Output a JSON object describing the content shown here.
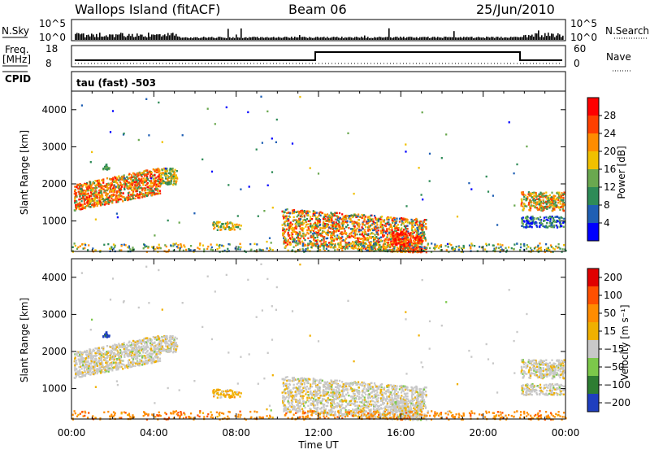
{
  "header": {
    "station": "Wallops Island (fitACF)",
    "beam": "Beam 06",
    "date": "25/Jun/2010"
  },
  "top_panels": {
    "nsky_label": "N.Sky",
    "nsky_ticks": [
      "10^5",
      "10^0"
    ],
    "nsearch_label": "N.Search",
    "nsearch_ticks": [
      "10^5",
      "10^0"
    ],
    "freq_label": "Freq.",
    "freq_unit": "[MHz]",
    "freq_ticks": [
      "18",
      "8"
    ],
    "nave_label": "Nave",
    "nave_ticks": [
      "60",
      "0"
    ],
    "cpid_label": "CPID",
    "cpid_value": "tau (fast) -503"
  },
  "chart_data": [
    {
      "type": "heatmap",
      "name": "power",
      "ylabel": "Slant Range [km]",
      "xlabel": "Time UT",
      "xlim": [
        0,
        24
      ],
      "ylim": [
        180,
        4500
      ],
      "x_ticks": [
        "00:00",
        "04:00",
        "08:00",
        "12:00",
        "16:00",
        "20:00",
        "00:00"
      ],
      "y_ticks": [
        "1000",
        "2000",
        "3000",
        "4000"
      ],
      "colorbar": {
        "label": "Power [dB]",
        "ticks": [
          "4",
          "8",
          "12",
          "16",
          "20",
          "24",
          "28"
        ],
        "colors": [
          "#0000ff",
          "#1f5fb4",
          "#2e8b57",
          "#6aa84f",
          "#f0c000",
          "#ff8c00",
          "#ff4000",
          "#ff0000"
        ]
      }
    },
    {
      "type": "heatmap",
      "name": "velocity",
      "ylabel": "Slant Range [km]",
      "xlabel": "Time UT",
      "xlim": [
        0,
        24
      ],
      "ylim": [
        180,
        4500
      ],
      "x_ticks": [
        "00:00",
        "04:00",
        "08:00",
        "12:00",
        "16:00",
        "20:00",
        "00:00"
      ],
      "y_ticks": [
        "1000",
        "2000",
        "3000",
        "4000"
      ],
      "colorbar": {
        "label": "Velocity [m s⁻¹]",
        "ticks": [
          "200",
          "100",
          "50",
          "15",
          "−15",
          "−50",
          "−100",
          "−200"
        ],
        "colors": [
          "#1f3fbf",
          "#2e7d32",
          "#7cc84a",
          "#c8c8c8",
          "#f0b000",
          "#ff8c00",
          "#ff5000",
          "#e00000"
        ]
      }
    }
  ],
  "colors": {
    "axis": "#000000",
    "ground_scatter": "#c8c8c8"
  }
}
